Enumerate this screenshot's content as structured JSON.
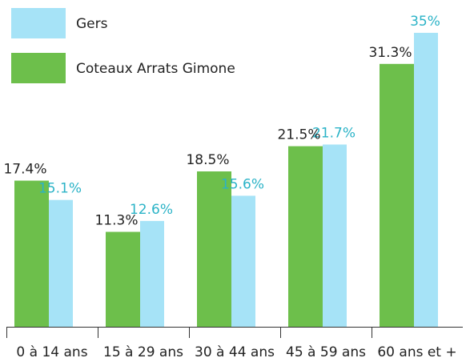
{
  "chart_data": {
    "type": "bar",
    "categories": [
      "0 à 14 ans",
      "15 à 29 ans",
      "30 à 44 ans",
      "45 à 59 ans",
      "60 ans et +"
    ],
    "series": [
      {
        "name": "Gers",
        "color": "#a6e3f7",
        "label_color": "#2bb3c7",
        "values": [
          15.1,
          12.6,
          15.6,
          21.7,
          35
        ],
        "value_labels": [
          "15.1%",
          "12.6%",
          "15.6%",
          "21.7%",
          "35%"
        ]
      },
      {
        "name": "Coteaux Arrats Gimone",
        "color": "#6dbf4b",
        "label_color": "#222222",
        "values": [
          17.4,
          11.3,
          18.5,
          21.5,
          31.3
        ],
        "value_labels": [
          "17.4%",
          "11.3%",
          "18.5%",
          "21.5%",
          "31.3%"
        ]
      }
    ]
  }
}
